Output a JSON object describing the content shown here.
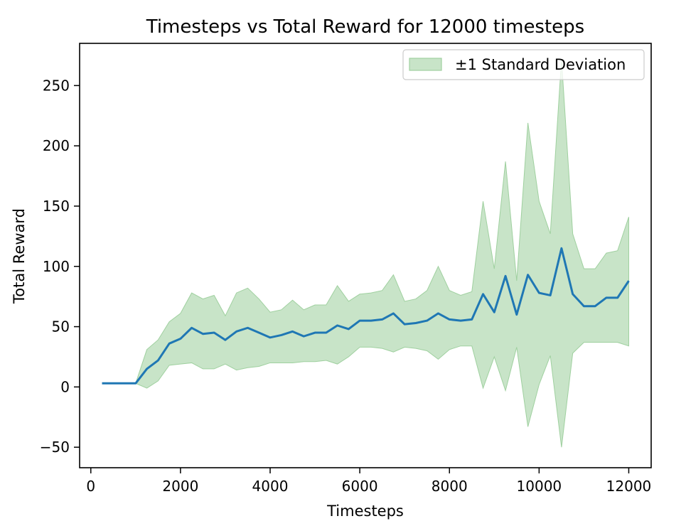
{
  "chart_data": {
    "type": "line",
    "title": "Timesteps vs Total Reward for 12000 timesteps",
    "xlabel": "Timesteps",
    "ylabel": "Total Reward",
    "xlim": [
      -250,
      12500
    ],
    "ylim": [
      -67,
      285
    ],
    "xticks": [
      0,
      2000,
      4000,
      6000,
      8000,
      10000,
      12000
    ],
    "xtick_labels": [
      "0",
      "2000",
      "4000",
      "6000",
      "8000",
      "10000",
      "12000"
    ],
    "yticks": [
      -50,
      0,
      50,
      100,
      150,
      200,
      250
    ],
    "ytick_labels": [
      "−50",
      "0",
      "50",
      "100",
      "150",
      "200",
      "250"
    ],
    "grid": false,
    "legend": {
      "position": "top-right",
      "entries": [
        "±1 Standard Deviation"
      ]
    },
    "colors": {
      "mean": "#1f77b4",
      "band_fill": "#c8e4c8",
      "band_edge": "#9fd09f"
    },
    "x": [
      250,
      500,
      750,
      1000,
      1250,
      1500,
      1750,
      2000,
      2250,
      2500,
      2750,
      3000,
      3250,
      3500,
      3750,
      4000,
      4250,
      4500,
      4750,
      5000,
      5250,
      5500,
      5750,
      6000,
      6250,
      6500,
      6750,
      7000,
      7250,
      7500,
      7750,
      8000,
      8250,
      8500,
      8750,
      9000,
      9250,
      9500,
      9750,
      10000,
      10250,
      10500,
      10750,
      11000,
      11250,
      11500,
      11750,
      12000
    ],
    "series": [
      {
        "kind": "mean",
        "values": [
          3,
          3,
          3,
          3,
          15,
          22,
          36,
          40,
          49,
          44,
          45,
          39,
          46,
          49,
          45,
          41,
          43,
          46,
          42,
          45,
          45,
          51,
          48,
          55,
          55,
          56,
          61,
          52,
          53,
          55,
          61,
          56,
          55,
          56,
          77,
          62,
          92,
          60,
          93,
          78,
          76,
          115,
          77,
          67,
          67,
          74,
          74,
          88
        ]
      },
      {
        "name": "±1 Standard Deviation",
        "kind": "band",
        "upper": [
          3,
          3,
          3,
          3,
          31,
          39,
          54,
          61,
          78,
          73,
          76,
          59,
          78,
          82,
          73,
          62,
          64,
          72,
          64,
          68,
          68,
          84,
          71,
          77,
          78,
          80,
          93,
          71,
          73,
          80,
          100,
          80,
          76,
          79,
          154,
          98,
          187,
          88,
          219,
          154,
          127,
          272,
          127,
          98,
          98,
          111,
          113,
          141
        ],
        "lower": [
          3,
          3,
          3,
          3,
          -1,
          5,
          18,
          19,
          20,
          15,
          15,
          19,
          14,
          16,
          17,
          20,
          20,
          20,
          21,
          21,
          22,
          19,
          25,
          33,
          33,
          32,
          29,
          33,
          32,
          30,
          23,
          31,
          34,
          34,
          -1,
          25,
          -3,
          33,
          -33,
          2,
          26,
          -50,
          28,
          37,
          37,
          37,
          37,
          34
        ]
      }
    ]
  }
}
